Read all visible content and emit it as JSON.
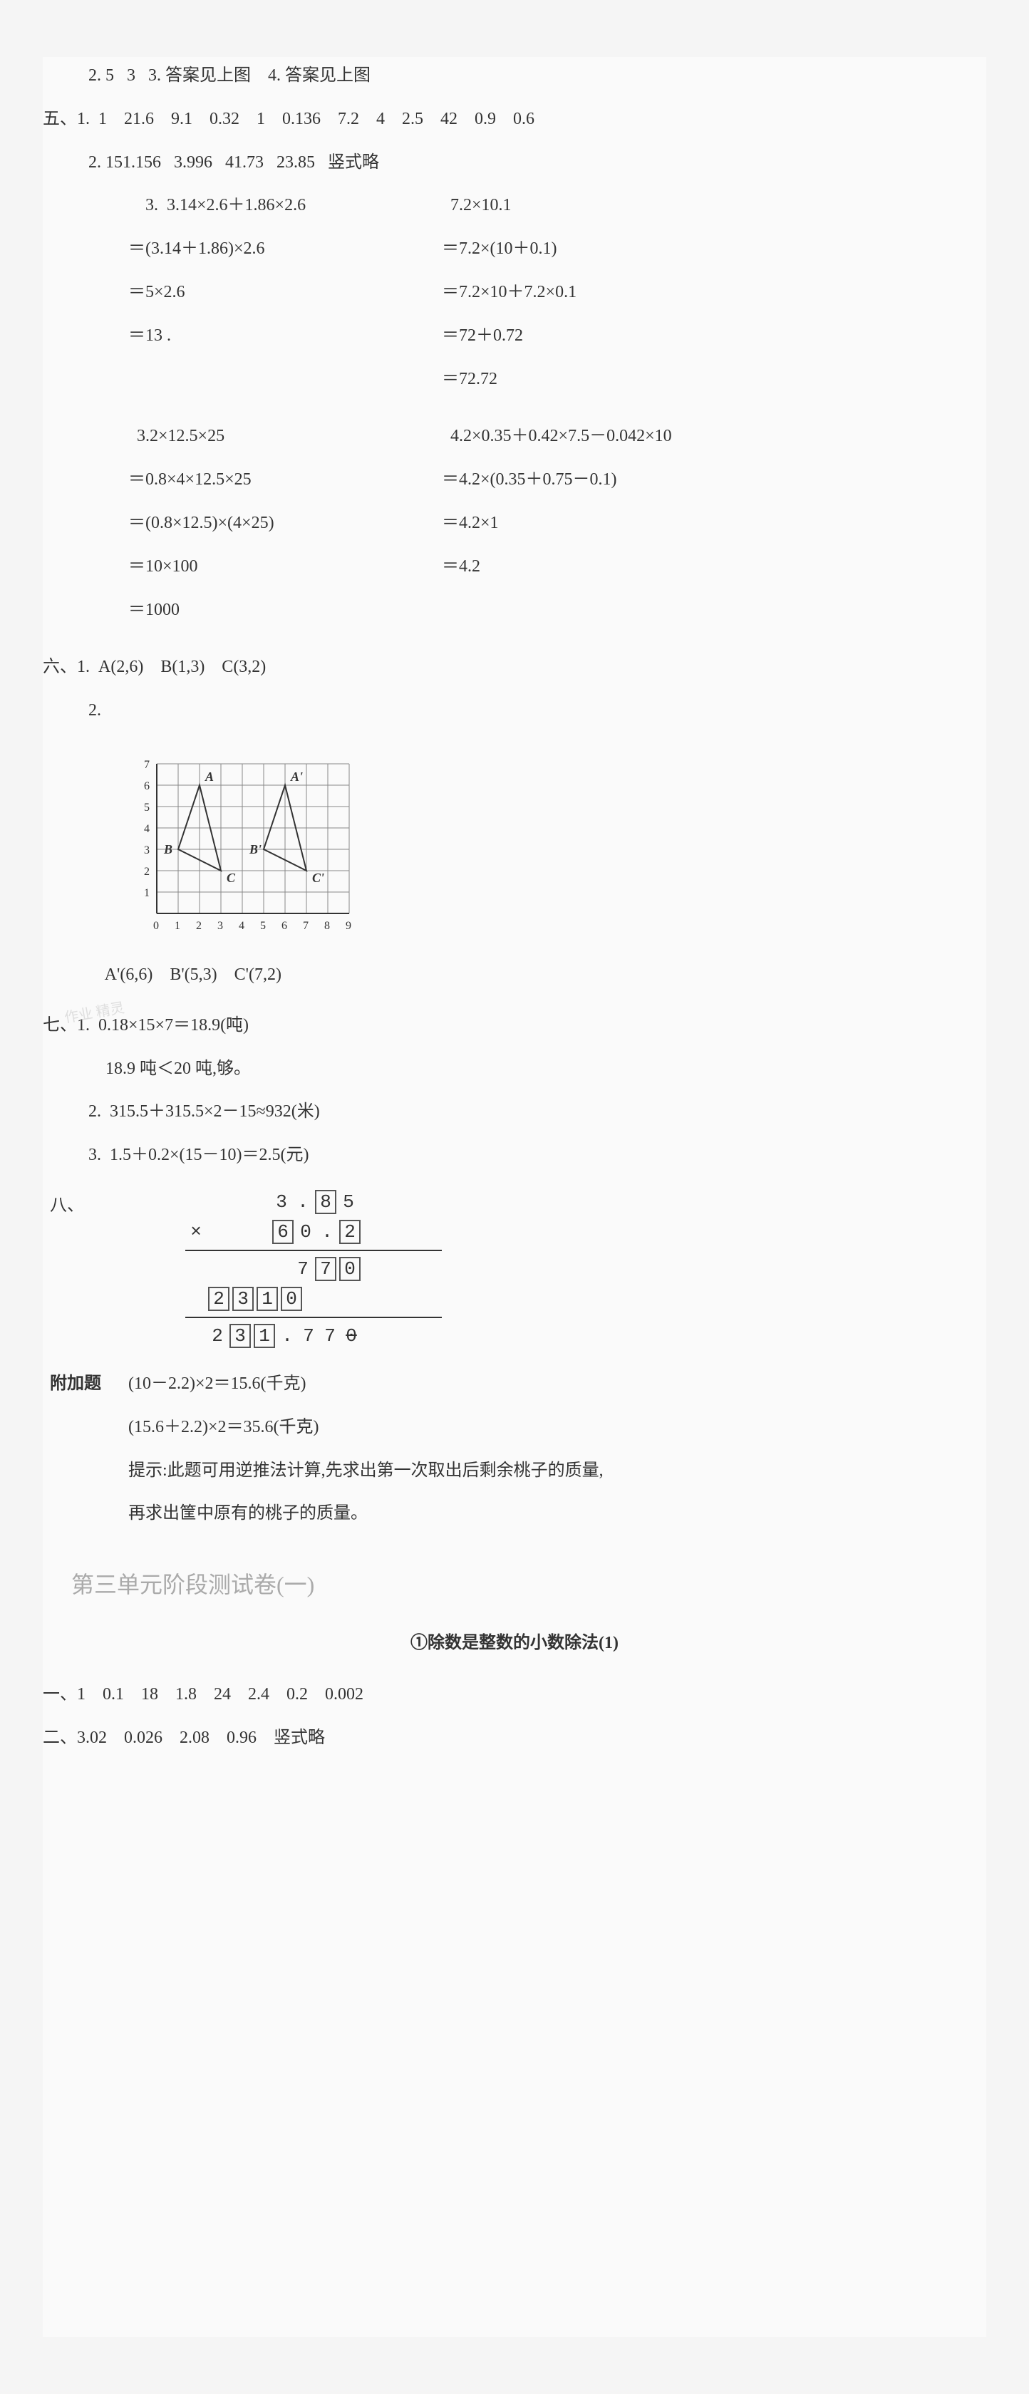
{
  "line_2": "    2. 5   3   3. 答案见上图    4. 答案见上图",
  "line_5_hdr": "五、1.  1    21.6    9.1    0.32    1    0.136    7.2    4    2.5    42    0.9    0.6",
  "line_5_2": "    2. 151.156   3.996   41.73   23.85   竖式略",
  "line_5_3": "    3.",
  "calc1_l1": "  3.14×2.6＋1.86×2.6",
  "calc1_l2": "＝(3.14＋1.86)×2.6",
  "calc1_l3": "＝5×2.6",
  "calc1_l4": "＝13 .",
  "calc2_l1": "  7.2×10.1",
  "calc2_l2": "＝7.2×(10＋0.1)",
  "calc2_l3": "＝7.2×10＋7.2×0.1",
  "calc2_l4": "＝72＋0.72",
  "calc2_l5": "＝72.72",
  "calc3_l1": "  3.2×12.5×25",
  "calc3_l2": "＝0.8×4×12.5×25",
  "calc3_l3": "＝(0.8×12.5)×(4×25)",
  "calc3_l4": "＝10×100",
  "calc3_l5": "＝1000",
  "calc4_l1": "  4.2×0.35＋0.42×7.5－0.042×10",
  "calc4_l2": "＝4.2×(0.35＋0.75－0.1)",
  "calc4_l3": "＝4.2×1",
  "calc4_l4": "＝4.2",
  "six_1": "六、1.  A(2,6)    B(1,3)    C(3,2)",
  "six_2_label": "    2.",
  "graph": {
    "grid_size": 9,
    "y_labels": [
      7,
      6,
      5,
      4,
      3,
      2,
      1,
      0
    ],
    "x_labels": [
      0,
      1,
      2,
      3,
      4,
      5,
      6,
      7,
      8,
      9
    ],
    "triangles": [
      {
        "pts": [
          [
            2,
            6
          ],
          [
            1,
            3
          ],
          [
            3,
            2
          ]
        ],
        "labels": [
          "A",
          "B",
          "C"
        ]
      },
      {
        "pts": [
          [
            6,
            6
          ],
          [
            5,
            3
          ],
          [
            7,
            2
          ]
        ],
        "labels": [
          "A'",
          "B'",
          "C'"
        ]
      }
    ]
  },
  "six_2_coords": "        A'(6,6)    B'(5,3)    C'(7,2)",
  "seven_1a": "七、1.  0.18×15×7＝18.9(吨)",
  "seven_1b": "        18.9 吨＜20 吨,够。",
  "seven_2": "    2.  315.5＋315.5×2－15≈932(米)",
  "seven_3": "    3.  1.5＋0.2×(15－10)＝2.5(元)",
  "eight_label": "八、",
  "multiplication": {
    "row1": {
      "leading": "",
      "d1": "3",
      "dot": ".",
      "b1": "8",
      "d2": "5"
    },
    "row2": {
      "sym": "×",
      "b1": "6",
      "d1": "0",
      "dot": ".",
      "b2": "2"
    },
    "row3": {
      "d1": "7",
      "b1": "7",
      "b2": "0"
    },
    "row4": {
      "b1": "2",
      "b2": "3",
      "b3": "1",
      "b4": "0"
    },
    "row5": {
      "d1": "2",
      "b1": "3",
      "b2": "1",
      "dot": ".",
      "d2": "7",
      "d3": "7",
      "d4": "0"
    }
  },
  "bonus_label": "附加题",
  "bonus_1": "(10－2.2)×2＝15.6(千克)",
  "bonus_2": "(15.6＋2.2)×2＝35.6(千克)",
  "bonus_hint1": "提示:此题可用逆推法计算,先求出第一次取出后剩余桃子的质量,",
  "bonus_hint2": "再求出筐中原有的桃子的质量。",
  "section_title": "第三单元阶段测试卷(一)",
  "sub_title": "①除数是整数的小数除法(1)",
  "ans_1": "一、1    0.1    18    1.8    24    2.4    0.2    0.002",
  "ans_2": "二、3.02    0.026    2.08    0.96    竖式略",
  "watermark": "作业\n精灵"
}
